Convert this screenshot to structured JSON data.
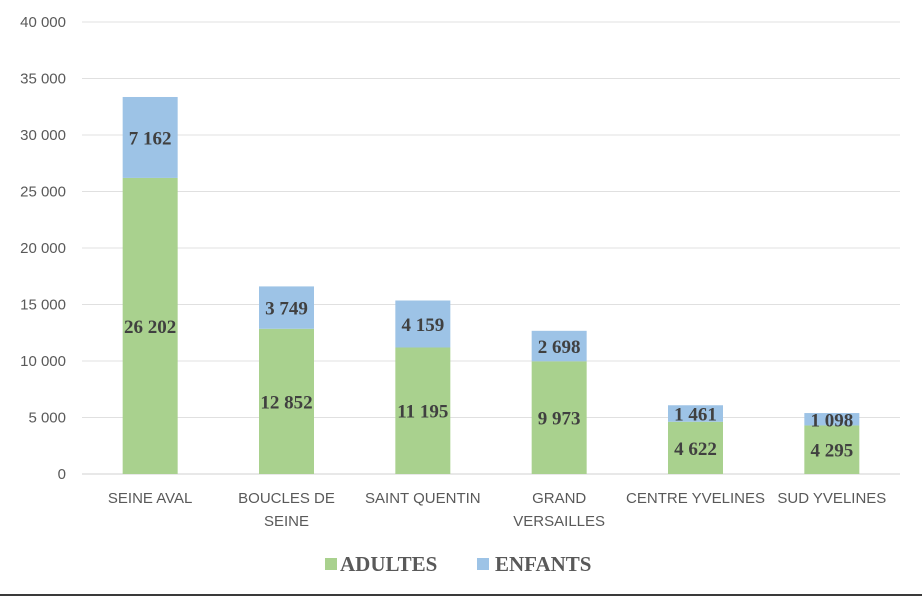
{
  "chart_data": {
    "type": "bar",
    "stacked": true,
    "categories": [
      [
        "SEINE AVAL"
      ],
      [
        "BOUCLES DE",
        "SEINE"
      ],
      [
        "SAINT QUENTIN"
      ],
      [
        "GRAND",
        "VERSAILLES"
      ],
      [
        "CENTRE YVELINES"
      ],
      [
        "SUD YVELINES"
      ]
    ],
    "series": [
      {
        "name": "ADULTES",
        "color": "#a9d18e",
        "values": [
          26202,
          12852,
          11195,
          9973,
          4622,
          4295
        ],
        "labels": [
          "26 202",
          "12 852",
          "11 195",
          "9 973",
          "4 622",
          "4 295"
        ]
      },
      {
        "name": "ENFANTS",
        "color": "#9dc3e6",
        "values": [
          7162,
          3749,
          4159,
          2698,
          1461,
          1098
        ],
        "labels": [
          "7 162",
          "3 749",
          "4 159",
          "2 698",
          "1 461",
          "1 098"
        ]
      }
    ],
    "ylim": [
      0,
      40000
    ],
    "yticks": [
      0,
      5000,
      10000,
      15000,
      20000,
      25000,
      30000,
      35000,
      40000
    ],
    "ytick_labels": [
      "0",
      "5 000",
      "10 000",
      "15 000",
      "20 000",
      "25 000",
      "30 000",
      "35 000",
      "40 000"
    ],
    "grid": true,
    "legend_position": "bottom"
  }
}
